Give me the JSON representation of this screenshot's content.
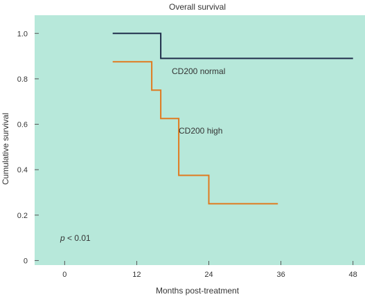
{
  "chart_data": {
    "type": "line",
    "title": "Overall survival",
    "xlabel": "Months post-treatment",
    "ylabel": "Cumulative survival",
    "xlim": [
      -5,
      50
    ],
    "ylim": [
      -0.02,
      1.08
    ],
    "x_ticks": [
      0,
      12,
      24,
      36,
      48
    ],
    "y_ticks": [
      0,
      0.2,
      0.4,
      0.6,
      0.8,
      1.0
    ],
    "x_tick_labels": [
      "0",
      "12",
      "24",
      "36",
      "48"
    ],
    "y_tick_labels": [
      "0",
      "0.2",
      "0.4",
      "0.6",
      "0.8",
      "1.0"
    ],
    "grid": false,
    "step": true,
    "background_color": "#b7e8da",
    "series": [
      {
        "name": "CD200 normal",
        "color": "#1f2d4a",
        "x": [
          8,
          16,
          16,
          48
        ],
        "y": [
          1.0,
          1.0,
          0.89,
          0.89
        ]
      },
      {
        "name": "CD200 high",
        "color": "#e07a1f",
        "x": [
          8,
          14.5,
          14.5,
          16,
          16,
          19,
          19,
          24,
          24,
          35.5
        ],
        "y": [
          0.875,
          0.875,
          0.75,
          0.75,
          0.625,
          0.625,
          0.375,
          0.375,
          0.25,
          0.25
        ]
      }
    ],
    "annotations": [
      {
        "text": "p < 0.01",
        "italic_prefix": "p",
        "rest": " < 0.01",
        "x": 1.5,
        "y": 0.07
      }
    ]
  }
}
